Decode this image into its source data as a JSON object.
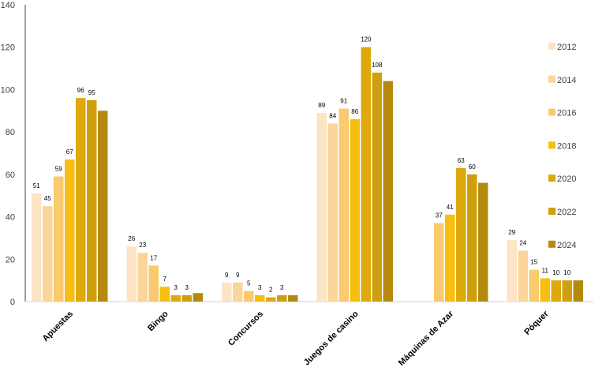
{
  "chart_data": {
    "type": "bar",
    "title": "",
    "xlabel": "",
    "ylabel": "",
    "ylim": [
      0,
      140
    ],
    "yticks": [
      "0",
      "20",
      "40",
      "60",
      "80",
      "100",
      "120",
      "140"
    ],
    "grid": false,
    "legend_position": "right",
    "categories": [
      "Apuestas",
      "Bingo",
      "Concursos",
      "Juegos de casino",
      "Máquinas de Azar",
      "Póquer"
    ],
    "series": [
      {
        "name": "2012",
        "color": "#FCE4C4",
        "values": [
          51,
          26,
          9,
          89,
          null,
          29
        ],
        "labels": [
          "51",
          "26",
          "9",
          "89",
          "",
          "29"
        ]
      },
      {
        "name": "2014",
        "color": "#FBD599",
        "values": [
          45,
          23,
          9,
          84,
          null,
          24
        ],
        "labels": [
          "45",
          "23",
          "9",
          "84",
          "",
          "24"
        ]
      },
      {
        "name": "2016",
        "color": "#F9CA6E",
        "values": [
          59,
          17,
          5,
          91,
          37,
          15
        ],
        "labels": [
          "59",
          "17",
          "5",
          "91",
          "37",
          "15"
        ]
      },
      {
        "name": "2018",
        "color": "#F7BE0F",
        "values": [
          67,
          7,
          3,
          86,
          41,
          11
        ],
        "labels": [
          "67",
          "7",
          "3",
          "86",
          "41",
          "11"
        ]
      },
      {
        "name": "2020",
        "color": "#DEA90C",
        "values": [
          96,
          3,
          2,
          120,
          63,
          10
        ],
        "labels": [
          "96",
          "3",
          "2",
          "120",
          "63",
          "10"
        ]
      },
      {
        "name": "2022",
        "color": "#CFA00E",
        "values": [
          95,
          3,
          3,
          108,
          60,
          10
        ],
        "labels": [
          "95",
          "3",
          "3",
          "108",
          "60",
          "10"
        ]
      },
      {
        "name": "2024",
        "color": "#B58A0C",
        "values": [
          90,
          4,
          3,
          104,
          56,
          10
        ],
        "labels": [
          "",
          "",
          "",
          "",
          "",
          ""
        ]
      }
    ]
  }
}
